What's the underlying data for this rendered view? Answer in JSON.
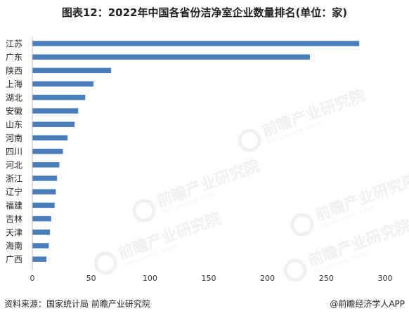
{
  "title": "图表12：2022年中国各省份洁净室企业数量排名(单位：家)",
  "source": "资料来源：国家统计局 前瞻产业研究院",
  "brand": "@前瞻经济学人APP",
  "watermark": {
    "main": "前瞻产业研究院",
    "sub": "中国产业咨询领导者 · 专业研究"
  },
  "colors": {
    "bar": "#4a7ebb",
    "axis": "#bfbfbf",
    "label": "#222222",
    "tick": "#333333"
  },
  "chart_data": {
    "type": "bar",
    "orientation": "horizontal",
    "title": "图表12：2022年中国各省份洁净室企业数量排名(单位：家)",
    "categories": [
      "江苏",
      "广东",
      "陕西",
      "上海",
      "湖北",
      "安徽",
      "山东",
      "河南",
      "四川",
      "河北",
      "浙江",
      "辽宁",
      "福建",
      "吉林",
      "天津",
      "海南",
      "广西"
    ],
    "values": [
      278,
      236,
      67,
      52,
      45,
      39,
      36,
      30,
      26,
      23,
      21,
      20,
      19,
      16,
      15,
      14,
      12
    ],
    "xlim": [
      0,
      300
    ],
    "xticks": [
      "0",
      "50",
      "100",
      "150",
      "200",
      "250",
      "300"
    ],
    "grid": false,
    "legend": "none"
  }
}
